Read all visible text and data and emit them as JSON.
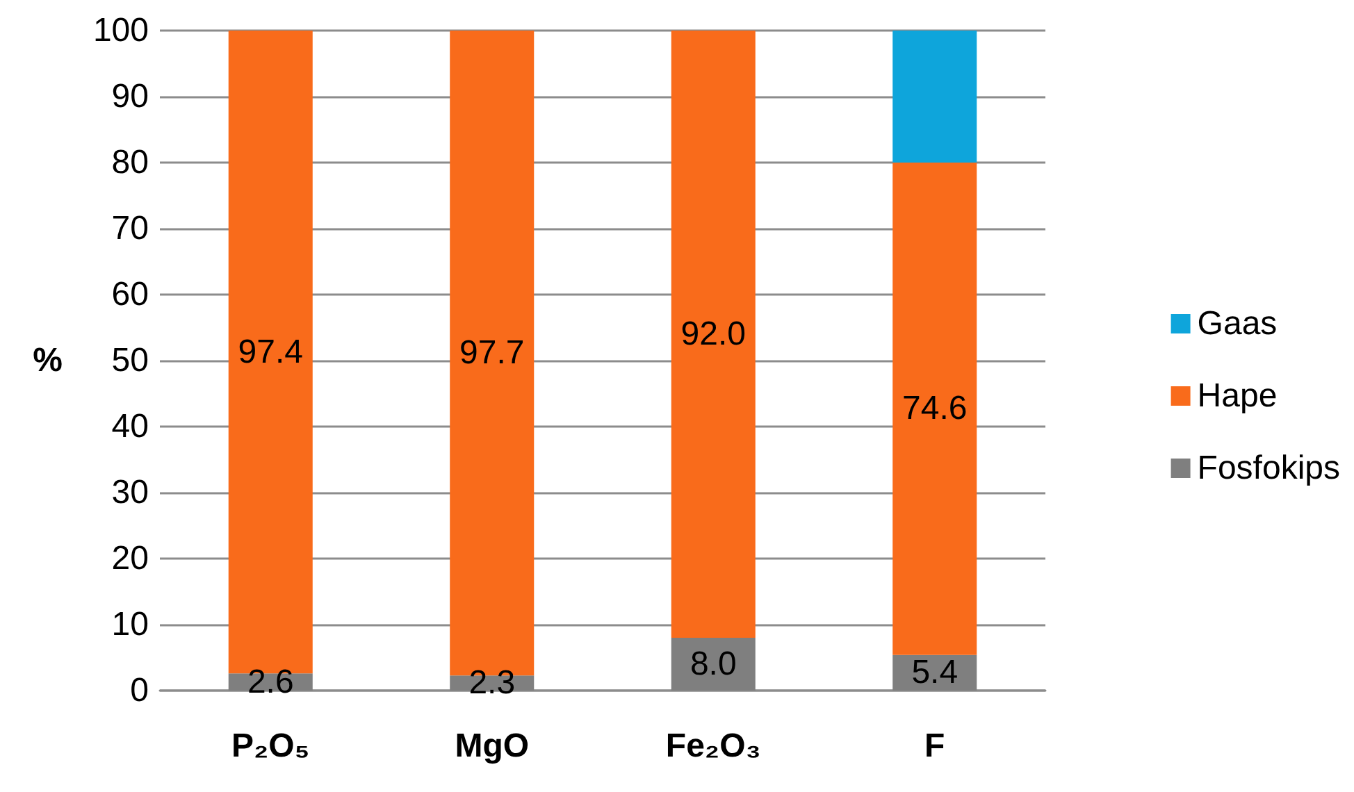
{
  "chart_data": {
    "type": "bar",
    "stacked": true,
    "ylabel": "%",
    "categories": [
      "P₂O₅",
      "MgO",
      "Fe₂O₃",
      "F"
    ],
    "series": [
      {
        "name": "Fosfokips",
        "color": "#7f7f7f",
        "values": [
          2.6,
          2.3,
          8.0,
          5.4
        ],
        "value_labels": [
          "2.6",
          "2.3",
          "8.0",
          "5.4"
        ]
      },
      {
        "name": "Hape",
        "color": "#f96b1b",
        "values": [
          97.4,
          97.7,
          92.0,
          74.6
        ],
        "value_labels": [
          "97.4",
          "97.7",
          "92.0",
          "74.6"
        ]
      },
      {
        "name": "Gaas",
        "color": "#0ea5db",
        "values": [
          0,
          0,
          0,
          20
        ]
      }
    ],
    "ylim": [
      0,
      100
    ],
    "yticks": [
      0,
      10,
      20,
      30,
      40,
      50,
      60,
      70,
      80,
      90,
      100
    ],
    "grid": "y",
    "legend": "right"
  }
}
